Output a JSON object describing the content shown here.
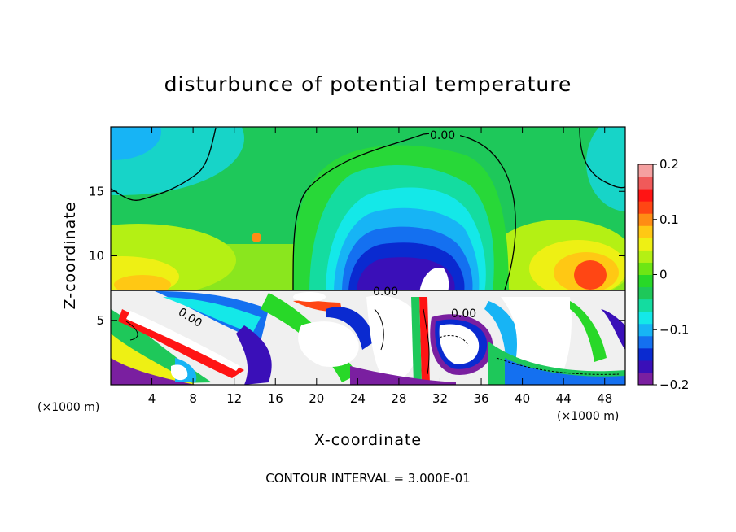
{
  "chart_data": {
    "type": "heatmap",
    "title": "disturbunce of potential temperature",
    "xlabel": "X-coordinate",
    "ylabel": "Z-coordinate",
    "x_unit": "(×1000 m)",
    "y_unit": "(×1000 m)",
    "xlim": [
      0,
      50
    ],
    "ylim": [
      0,
      20
    ],
    "x_ticks": [
      4,
      8,
      12,
      16,
      20,
      24,
      28,
      32,
      36,
      40,
      44,
      48
    ],
    "y_ticks": [
      5,
      10,
      15
    ],
    "colorbar": {
      "min": -0.2,
      "max": 0.2,
      "ticks": [
        -0.2,
        -0.1,
        0,
        0.1,
        0.2
      ],
      "tick_labels": [
        "−0.2",
        "−0.1",
        "0",
        "0.1",
        "0.2"
      ],
      "colors": [
        "#7a1fa0",
        "#3a0fb8",
        "#0a2ad0",
        "#1470f0",
        "#17b4f5",
        "#14e8e8",
        "#14dca0",
        "#1ec85a",
        "#28d828",
        "#6ee614",
        "#b4f014",
        "#eef014",
        "#ffc814",
        "#ff8c14",
        "#ff4614",
        "#ff1414",
        "#f05a5a",
        "#f5a0a0"
      ]
    },
    "contour_labels": [
      "0.00",
      "0.00",
      "0.00",
      "0.00"
    ],
    "contour_interval": "CONTOUR INTERVAL = 3.000E-01"
  }
}
